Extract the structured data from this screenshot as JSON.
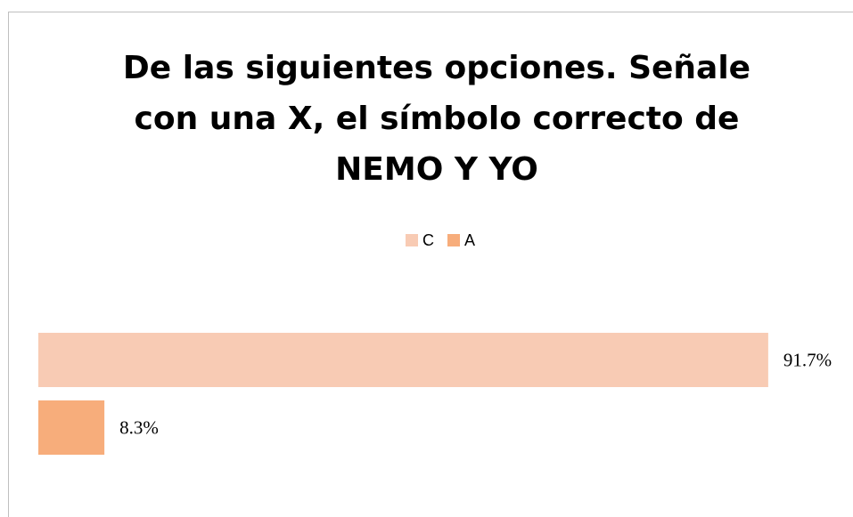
{
  "chart_data": {
    "type": "hbar",
    "title": "De las siguientes opciones. Señale con una X, el símbolo correcto de NEMO Y YO",
    "categories": [
      null
    ],
    "series": [
      {
        "name": "C",
        "color": "#f8cbb4",
        "values": [
          91.7
        ],
        "value_labels": [
          "91.7%"
        ]
      },
      {
        "name": "A",
        "color": "#f7ad7b",
        "values": [
          8.3
        ],
        "value_labels": [
          "8.3%"
        ]
      }
    ],
    "xlim": [
      0,
      100
    ],
    "legend": "top"
  }
}
